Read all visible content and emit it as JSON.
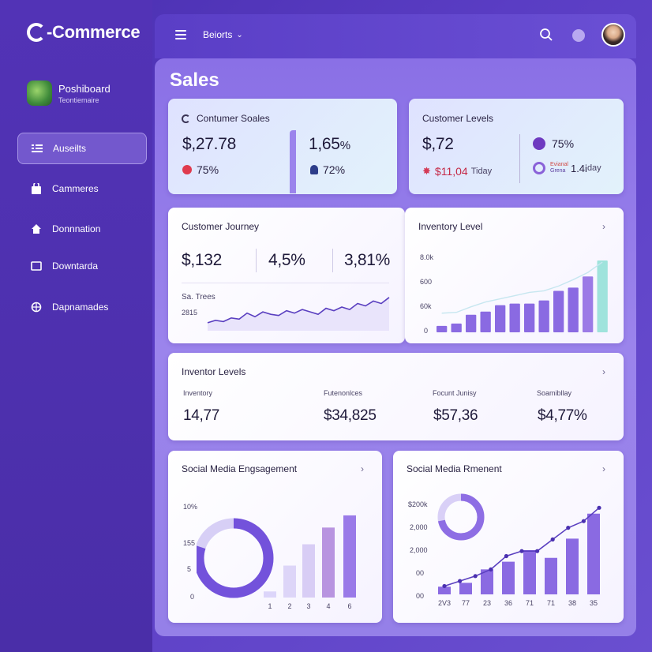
{
  "brand": {
    "name": "-Commerce"
  },
  "profile": {
    "title": "Poshiboard",
    "subtitle": "Teontiemaire"
  },
  "nav": [
    {
      "label": "Auseilts",
      "icon": "list-icon"
    },
    {
      "label": "Cammeres",
      "icon": "bag-icon"
    },
    {
      "label": "Donnnation",
      "icon": "home-icon"
    },
    {
      "label": "Downtarda",
      "icon": "square-icon"
    },
    {
      "label": "Dapnamades",
      "icon": "globe-icon"
    }
  ],
  "topbar": {
    "reports_label": "Beiorts"
  },
  "main": {
    "title": "Sales"
  },
  "consumer_sales": {
    "title": "Contumer Soales",
    "value1": "$,27.78",
    "sub1": "75%",
    "value2": "1,65",
    "value2_unit": "%",
    "sub2": "72%"
  },
  "customer_levels": {
    "title": "Customer Levels",
    "value": "$,72",
    "sub_value": "$11,04",
    "sub_label": "Tiday",
    "pct": "75%",
    "badge_line1": "Evianal",
    "badge_line2": "Grena",
    "badge_value": "1.4i",
    "badge_suffix": "day"
  },
  "journey": {
    "title": "Customer Journey",
    "stat1": "$,132",
    "stat2": "4,5%",
    "stat3": "3,81%",
    "chart_label": "Sa. Trees",
    "chart_value": "2815"
  },
  "inventory": {
    "title": "Inventory Level",
    "ticks": [
      "8.0k",
      "600",
      "60k",
      "0"
    ]
  },
  "inventory_levels": {
    "title": "Inventor Levels",
    "cols": [
      {
        "label": "Inventory",
        "value": "14,77"
      },
      {
        "label": "Futenonlces",
        "value": "$34,825"
      },
      {
        "label": "Focunt Junisy",
        "value": "$57,36"
      },
      {
        "label": "Soamibllay",
        "value": "$4,77%"
      }
    ]
  },
  "social_engagement": {
    "title": "Social Media Engsagement",
    "yticks": [
      "10%",
      "155",
      "5",
      "0"
    ],
    "xticks": [
      "1",
      "2",
      "3",
      "4",
      "6"
    ]
  },
  "social_rmement": {
    "title": "Social Media Rmenent",
    "yticks": [
      "$200k",
      "2,000",
      "2,000",
      "00",
      "00"
    ],
    "xticks": [
      "2V3",
      "77",
      "23",
      "36",
      "71",
      "71",
      "38",
      "35"
    ]
  },
  "chart_data": [
    {
      "type": "line",
      "name": "customer-journey",
      "x": [
        0,
        1,
        2,
        3,
        4,
        5,
        6,
        7,
        8,
        9,
        10,
        11,
        12,
        13,
        14,
        15,
        16,
        17,
        18,
        19,
        20,
        21,
        22,
        23
      ],
      "values": [
        4,
        6,
        5,
        8,
        7,
        12,
        9,
        13,
        11,
        10,
        14,
        12,
        15,
        13,
        11,
        16,
        14,
        17,
        15,
        20,
        18,
        22,
        20,
        25
      ]
    },
    {
      "type": "bar",
      "name": "inventory-level",
      "categories": [
        "1",
        "2",
        "3",
        "4",
        "5",
        "6",
        "7",
        "8",
        "9",
        "10",
        "11",
        "12"
      ],
      "values": [
        8,
        11,
        22,
        26,
        34,
        36,
        36,
        40,
        52,
        56,
        70,
        90
      ],
      "trend": [
        24,
        25,
        32,
        38,
        42,
        46,
        50,
        52,
        58,
        66,
        75,
        88
      ]
    },
    {
      "type": "bar",
      "name": "social-engagement",
      "categories": [
        "1",
        "2",
        "3",
        "4",
        "6"
      ],
      "values": [
        8,
        42,
        70,
        92,
        108
      ],
      "donut_percent": 80
    },
    {
      "type": "bar",
      "name": "social-rmement",
      "categories": [
        "2V3",
        "77",
        "23",
        "36",
        "71",
        "71",
        "38",
        "35"
      ],
      "values": [
        8,
        12,
        26,
        34,
        46,
        38,
        58,
        84
      ],
      "line": [
        10,
        16,
        22,
        30,
        46,
        52,
        52,
        66,
        80,
        88,
        104
      ],
      "donut_percent": 72
    }
  ]
}
